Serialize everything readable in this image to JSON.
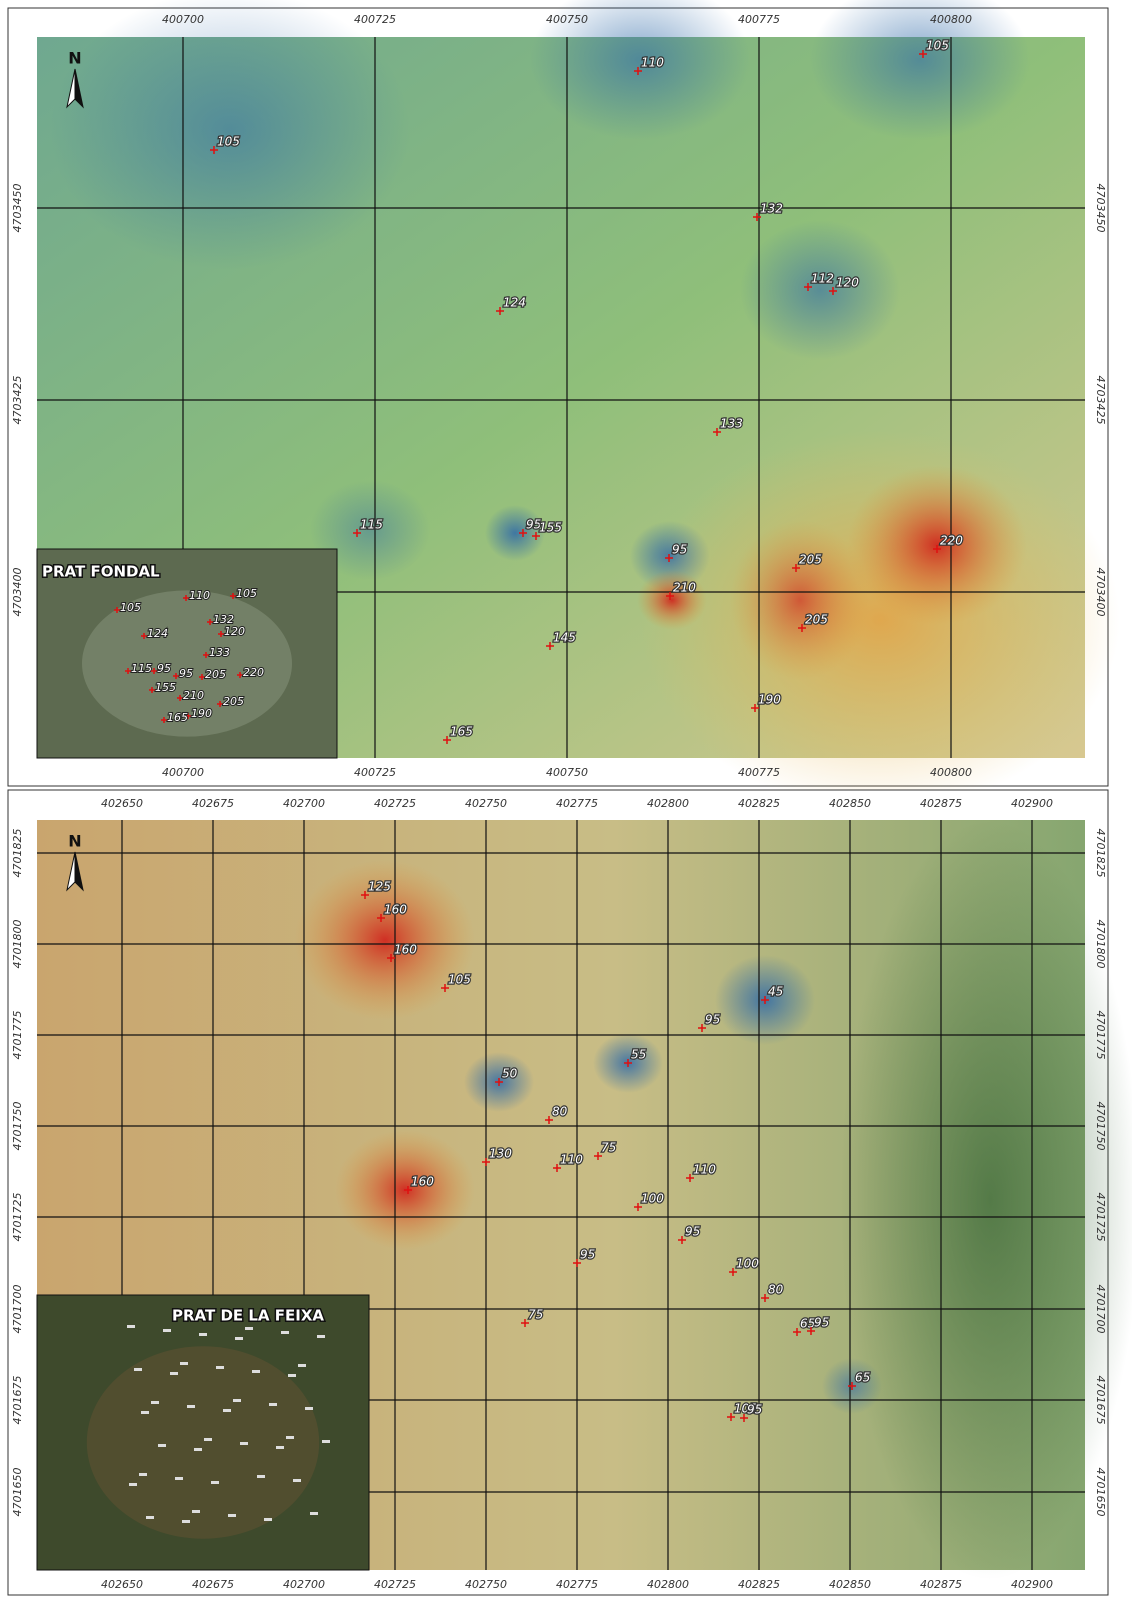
{
  "panels": [
    {
      "title": "PRAT FONDAL",
      "north": "N",
      "x_ticks": [
        400700,
        400725,
        400750,
        400775,
        400800
      ],
      "y_ticks": [
        4703450,
        4703425,
        4703400
      ],
      "points": [
        "110",
        "105",
        "105",
        "132",
        "112",
        "120",
        "124",
        "133",
        "115",
        "95",
        "155",
        "95",
        "220",
        "205",
        "210",
        "205",
        "145",
        "190",
        "165"
      ],
      "inset_labels": [
        "105",
        "110",
        "105",
        "132",
        "120",
        "124",
        "133",
        "115",
        "95",
        "95",
        "205",
        "220",
        "155",
        "210",
        "205",
        "190",
        "165"
      ]
    },
    {
      "title": "PRAT DE LA FEIXA",
      "north": "N",
      "x_ticks": [
        402650,
        402675,
        402700,
        402725,
        402750,
        402775,
        402800,
        402825,
        402850,
        402875,
        402900
      ],
      "y_ticks": [
        4701825,
        4701800,
        4701775,
        4701750,
        4701725,
        4701700,
        4701675,
        4701650
      ],
      "points": [
        "125",
        "160",
        "160",
        "105",
        "45",
        "95",
        "55",
        "50",
        "80",
        "130",
        "75",
        "110",
        "110",
        "160",
        "100",
        "95",
        "95",
        "100",
        "80",
        "75",
        "65",
        "95",
        "65",
        "105",
        "95"
      ]
    }
  ]
}
